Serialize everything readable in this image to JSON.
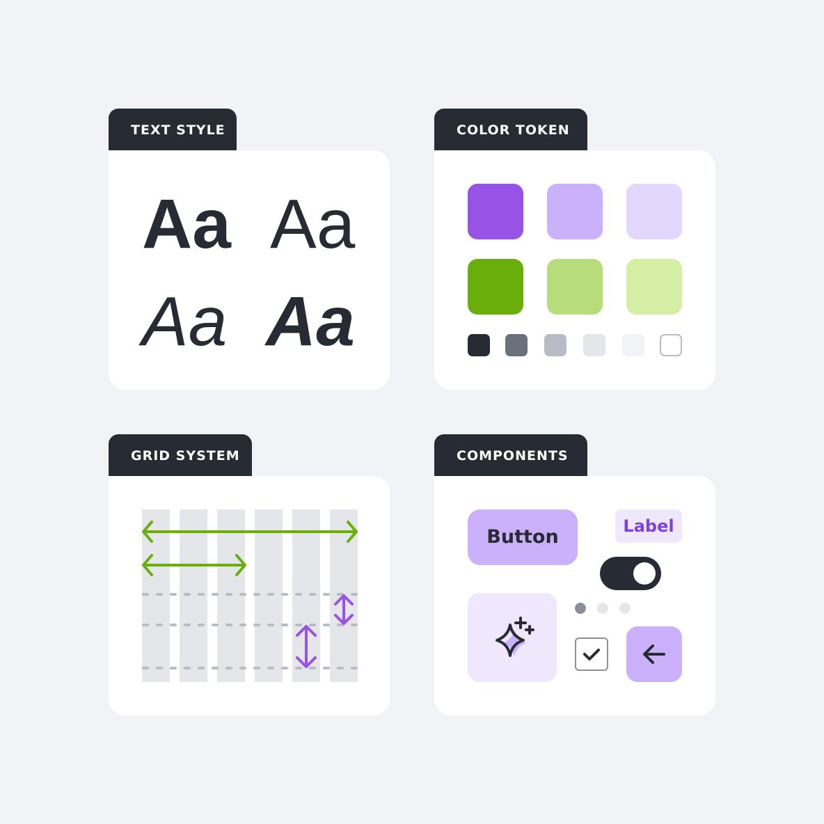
{
  "panels": {
    "text_style": {
      "title": "TEXT STYLE",
      "samples": [
        "Aa",
        "Aa",
        "Aa",
        "Aa"
      ]
    },
    "color_token": {
      "title": "COLOR TOKEN",
      "purple": [
        "#9852e6",
        "#cbb0fb",
        "#e3d7fd"
      ],
      "green": [
        "#6aae0c",
        "#b7dc7a",
        "#d4eea4"
      ],
      "neutrals": [
        "#272b33",
        "#6b717b",
        "#b9bcc5",
        "#e5e6ea",
        "#f2f3f6",
        "#ffffff"
      ]
    },
    "grid_system": {
      "title": "GRID SYSTEM",
      "columns": 6,
      "accent_h": "#6aae0c",
      "accent_v": "#9852e6"
    },
    "components": {
      "title": "COMPONENTS",
      "button_label": "Button",
      "tag_label": "Label",
      "toggle_on": true,
      "checkbox_checked": true,
      "pagination_active": 1,
      "pagination_total": 3,
      "icons": [
        "sparkle-icon",
        "arrow-left-icon",
        "checkmark-icon"
      ]
    }
  }
}
